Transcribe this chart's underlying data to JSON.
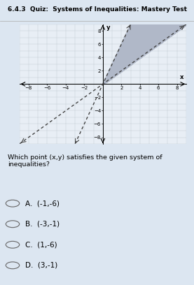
{
  "title": "6.4.3  Quiz:  Systems of Inequalities: Mastery Test",
  "question": "Which point (x,y) satisfies the given system of inequalities?",
  "choices": [
    "A.  (-1,-6)",
    "B.  (-3,-1)",
    "C.  (1,-6)",
    "D.  (3,-1)"
  ],
  "xlim": [
    -9,
    9
  ],
  "ylim": [
    -9,
    9
  ],
  "xticks": [
    -8,
    -6,
    -4,
    -2,
    2,
    4,
    6,
    8
  ],
  "yticks": [
    -8,
    -6,
    -4,
    -2,
    2,
    4,
    6,
    8
  ],
  "line1_slope": 3,
  "line1_intercept": 0,
  "line2_slope": 1,
  "line2_intercept": 0,
  "line_color": "#444444",
  "shade_color": "#b0b8c8",
  "background_color": "#dce6f1",
  "graph_bg": "#e8eef5",
  "title_fontsize": 6.5,
  "question_fontsize": 6.8,
  "choice_fontsize": 7.5,
  "axis_fontsize": 5
}
